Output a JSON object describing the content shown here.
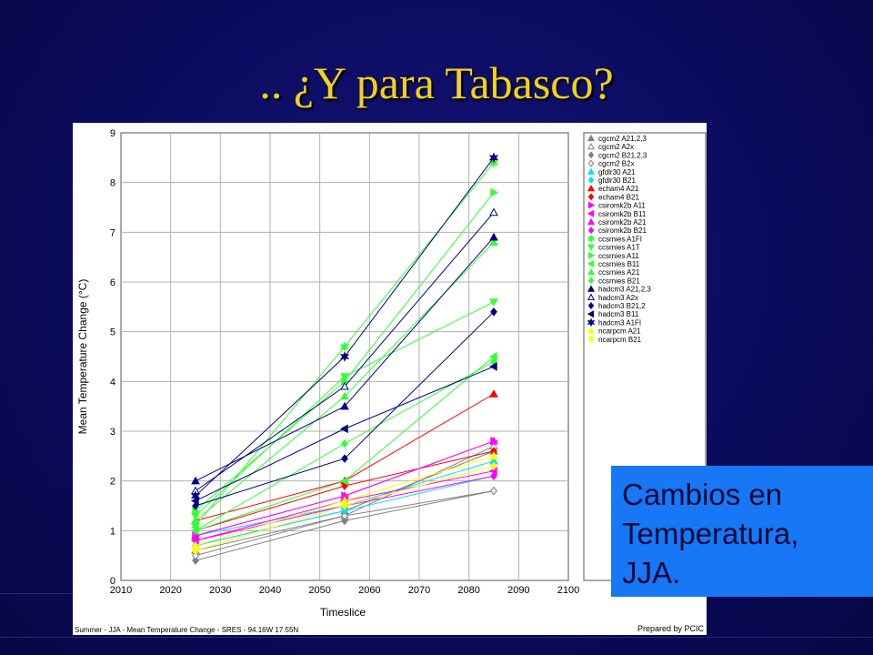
{
  "slide": {
    "title": ".. ¿Y para Tabasco?",
    "caption_lines": [
      "Cambios en",
      "Temperatura,",
      "JJA."
    ]
  },
  "chart_data": {
    "type": "line",
    "footer": "Summer - JJA - Mean Temperature Change - SRES - 94.16W 17.55N",
    "credit": "Prepared by PCIC",
    "xlabel": "Timeslice",
    "ylabel": "Mean Temperature Change (°C)",
    "xlim": [
      2010,
      2100
    ],
    "ylim": [
      0,
      9
    ],
    "xticks": [
      2010,
      2020,
      2030,
      2040,
      2050,
      2060,
      2070,
      2080,
      2090,
      2100
    ],
    "yticks": [
      0,
      1,
      2,
      3,
      4,
      5,
      6,
      7,
      8,
      9
    ],
    "grid": true,
    "legend_position": "right",
    "x": [
      2025,
      2055,
      2085
    ],
    "series": [
      {
        "name": "cgcm2 A21,2,3",
        "color": "#808080",
        "marker": "triangle-up",
        "values": [
          0.7,
          1.4,
          2.6
        ]
      },
      {
        "name": "cgcm2 A2x",
        "color": "#808080",
        "marker": "triangle-up-open",
        "values": [
          0.6,
          1.3,
          2.7
        ]
      },
      {
        "name": "cgcm2 B21,2,3",
        "color": "#808080",
        "marker": "diamond",
        "values": [
          0.4,
          1.2,
          1.8
        ]
      },
      {
        "name": "cgcm2 B2x",
        "color": "#808080",
        "marker": "diamond-open",
        "values": [
          0.5,
          1.3,
          1.8
        ]
      },
      {
        "name": "gfdlr30 A21",
        "color": "#00e0ff",
        "marker": "triangle-up",
        "values": [
          0.9,
          1.5,
          2.4
        ]
      },
      {
        "name": "gfdlr30 B21",
        "color": "#00e0ff",
        "marker": "diamond",
        "values": [
          0.7,
          1.4,
          2.1
        ]
      },
      {
        "name": "echam4 A21",
        "color": "#ff0000",
        "marker": "triangle-up",
        "values": [
          1.2,
          2.0,
          3.75
        ]
      },
      {
        "name": "echam4 B21",
        "color": "#ff0000",
        "marker": "diamond",
        "values": [
          1.0,
          1.9,
          2.6
        ]
      },
      {
        "name": "csiromk2b A11",
        "color": "#ff00ff",
        "marker": "triangle-right",
        "values": [
          0.9,
          1.7,
          2.8
        ]
      },
      {
        "name": "csiromk2b B11",
        "color": "#ff00ff",
        "marker": "triangle-left",
        "values": [
          0.8,
          1.6,
          2.2
        ]
      },
      {
        "name": "csiromk2b A21",
        "color": "#ff00ff",
        "marker": "triangle-up",
        "values": [
          0.9,
          1.7,
          2.8
        ]
      },
      {
        "name": "csiromk2b B21",
        "color": "#ff00ff",
        "marker": "diamond",
        "values": [
          0.8,
          1.5,
          2.1
        ]
      },
      {
        "name": "ccsrnies A1FI",
        "color": "#33ff33",
        "marker": "star",
        "values": [
          1.1,
          4.7,
          8.4
        ]
      },
      {
        "name": "ccsrnies A1T",
        "color": "#33ff33",
        "marker": "triangle-down",
        "values": [
          1.3,
          4.1,
          5.6
        ]
      },
      {
        "name": "ccsrnies A11",
        "color": "#33ff33",
        "marker": "triangle-right",
        "values": [
          1.4,
          4.0,
          7.8
        ]
      },
      {
        "name": "ccsrnies B11",
        "color": "#33ff33",
        "marker": "triangle-left",
        "values": [
          1.0,
          2.0,
          4.5
        ]
      },
      {
        "name": "ccsrnies A21",
        "color": "#33ff33",
        "marker": "triangle-up",
        "values": [
          1.2,
          3.7,
          6.8
        ]
      },
      {
        "name": "ccsrnies B21",
        "color": "#33ff33",
        "marker": "diamond",
        "values": [
          1.0,
          2.75,
          4.4
        ]
      },
      {
        "name": "hadcm3 A21,2,3",
        "color": "#000080",
        "marker": "triangle-up",
        "values": [
          2.0,
          3.5,
          6.9
        ]
      },
      {
        "name": "hadcm3 A2x",
        "color": "#000080",
        "marker": "triangle-up-open",
        "values": [
          1.8,
          3.9,
          7.4
        ]
      },
      {
        "name": "hadcm3 B21,2",
        "color": "#000080",
        "marker": "diamond",
        "values": [
          1.5,
          2.45,
          5.4
        ]
      },
      {
        "name": "hadcm3 B11",
        "color": "#000080",
        "marker": "triangle-left",
        "values": [
          1.6,
          3.05,
          4.3
        ]
      },
      {
        "name": "hadcm3 A1FI",
        "color": "#000080",
        "marker": "star",
        "values": [
          1.7,
          4.5,
          8.5
        ]
      },
      {
        "name": "ncarpcm A21",
        "color": "#ffff00",
        "marker": "triangle-up",
        "values": [
          0.7,
          1.6,
          2.5
        ]
      },
      {
        "name": "ncarpcm B21",
        "color": "#ffff00",
        "marker": "diamond",
        "values": [
          0.6,
          1.5,
          2.3
        ]
      }
    ]
  }
}
